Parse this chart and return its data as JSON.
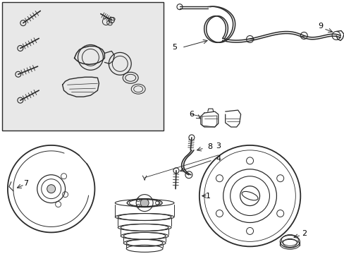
{
  "background_color": "#ffffff",
  "line_color": "#2a2a2a",
  "box_bg": "#e8e8e8",
  "figsize": [
    4.89,
    3.6
  ],
  "dpi": 100
}
